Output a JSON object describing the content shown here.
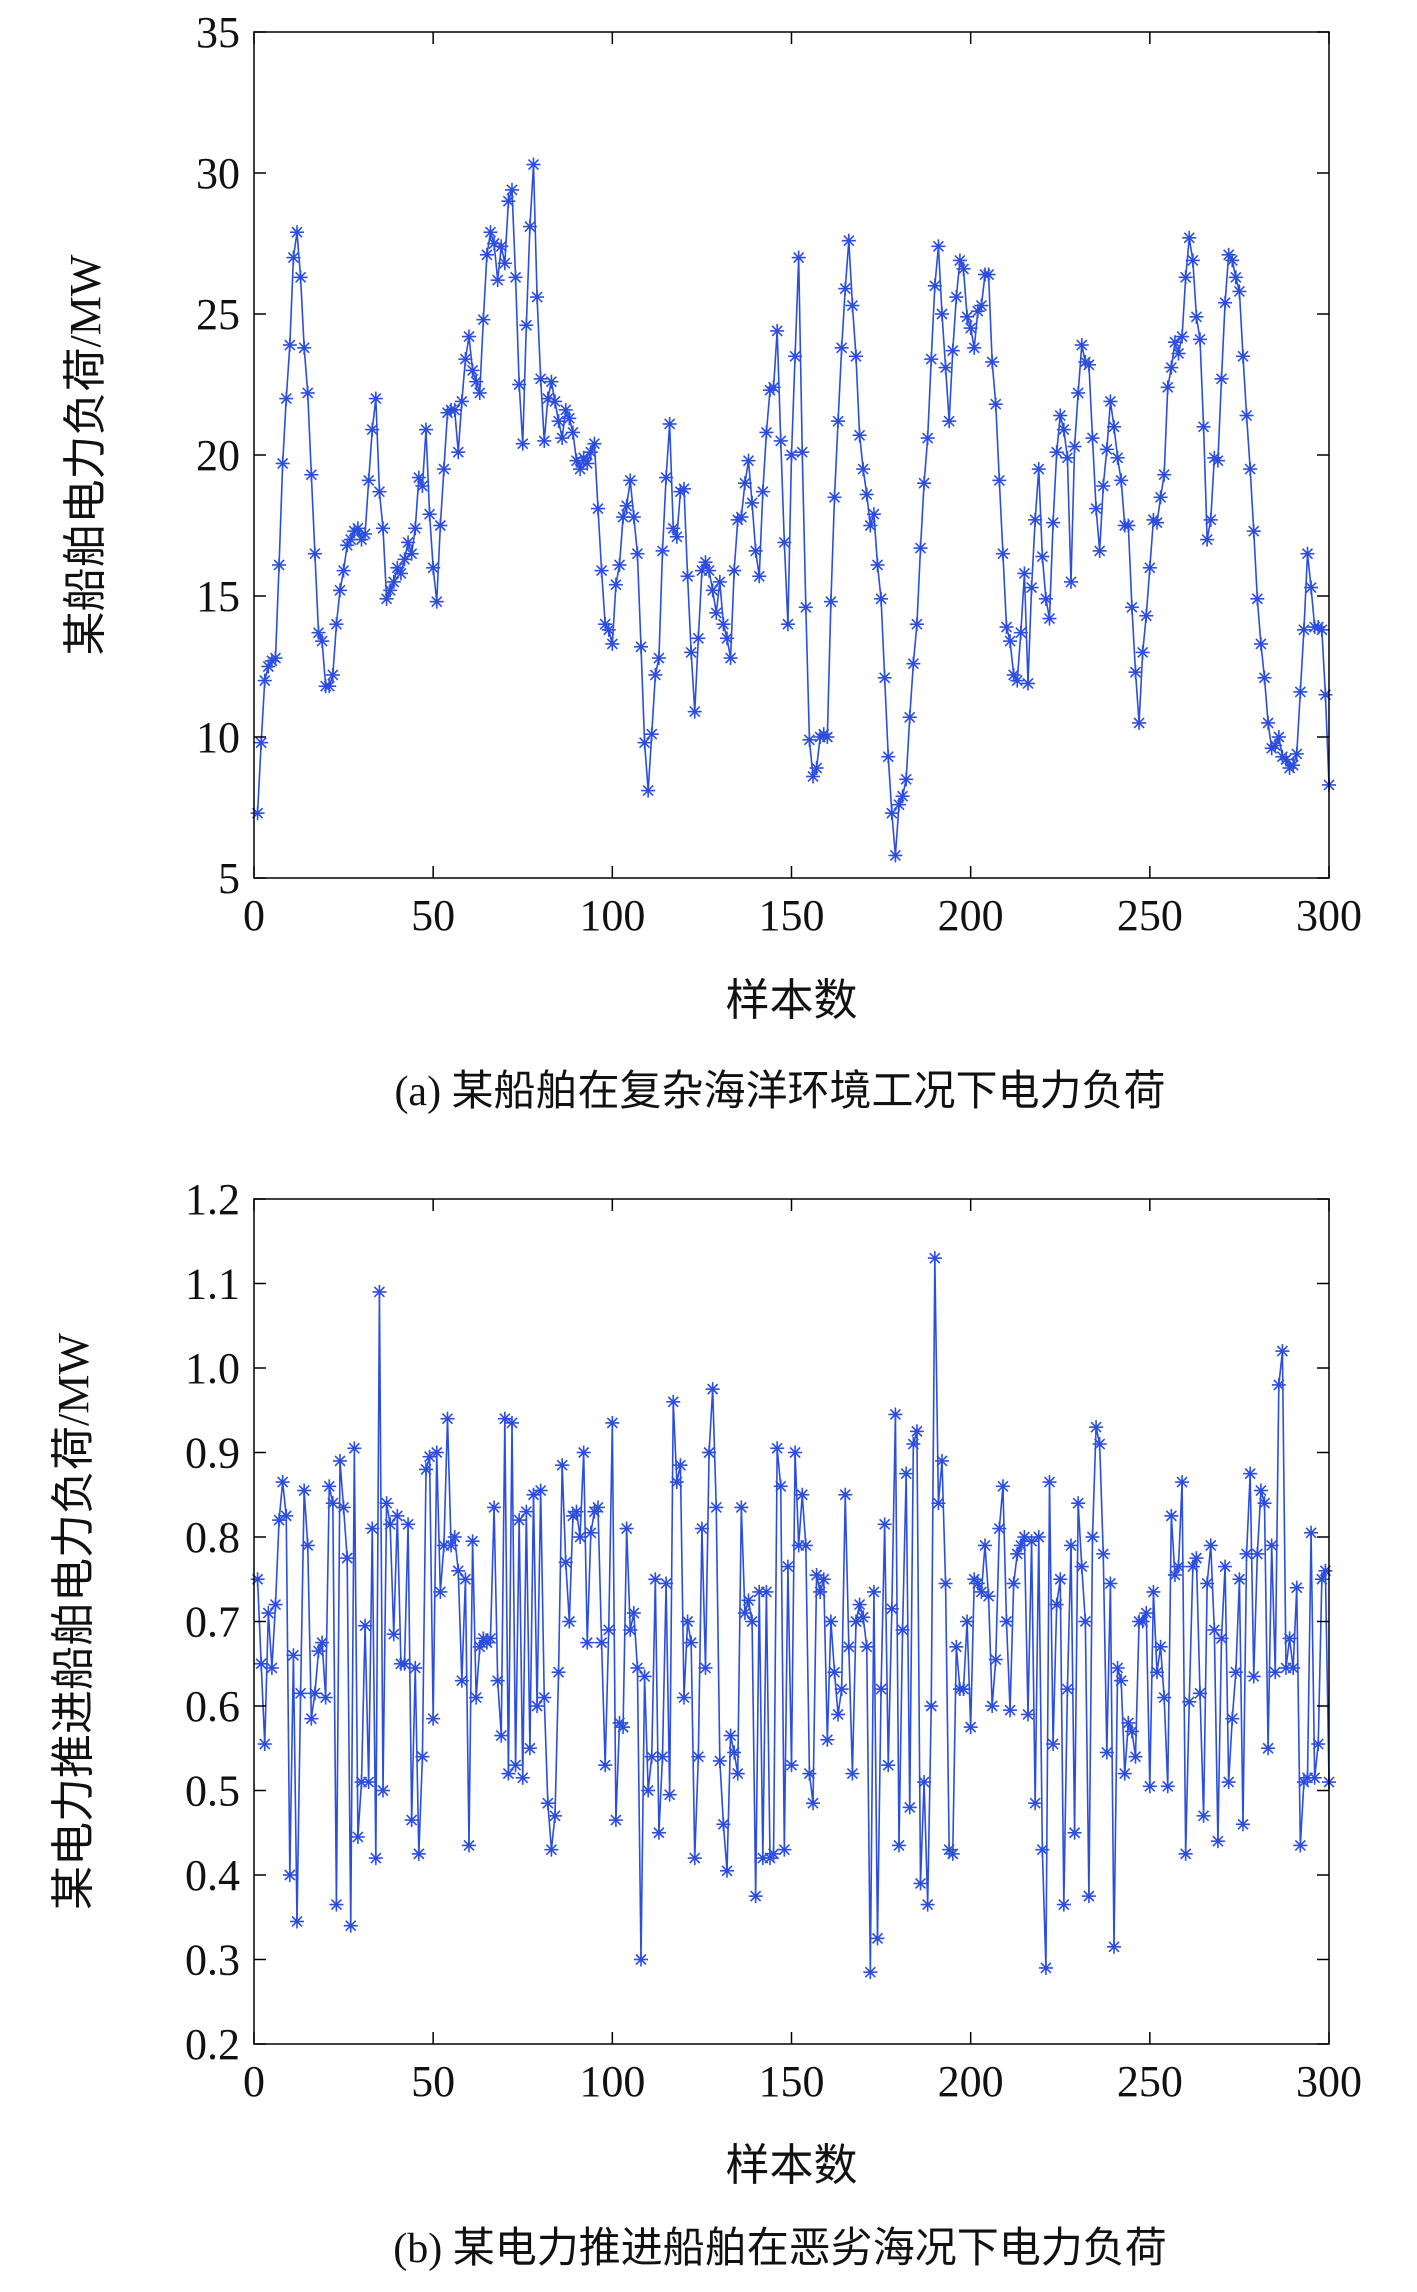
{
  "chart_data": [
    {
      "type": "line",
      "marker": "*",
      "color": "#2b4de0",
      "ylabel": "某船舶电力负荷/MW",
      "xlabel": "样本数",
      "caption": "(a) 某船舶在复杂海洋环境工况下电力负荷",
      "xlim": [
        0,
        300
      ],
      "xticks": [
        0,
        50,
        100,
        150,
        200,
        250,
        300
      ],
      "ylim": [
        5,
        35
      ],
      "yticks": [
        5,
        10,
        15,
        20,
        25,
        30,
        35
      ],
      "x": [
        1,
        2,
        3,
        4,
        5,
        6,
        7,
        8,
        9,
        10,
        11,
        12,
        13,
        14,
        15,
        16,
        17,
        18,
        19,
        20,
        21,
        22,
        23,
        24,
        25,
        26,
        27,
        28,
        29,
        30,
        31,
        32,
        33,
        34,
        35,
        36,
        37,
        38,
        39,
        40,
        41,
        42,
        43,
        44,
        45,
        46,
        47,
        48,
        49,
        50,
        51,
        52,
        53,
        54,
        55,
        56,
        57,
        58,
        59,
        60,
        61,
        62,
        63,
        64,
        65,
        66,
        67,
        68,
        69,
        70,
        71,
        72,
        73,
        74,
        75,
        76,
        77,
        78,
        79,
        80,
        81,
        82,
        83,
        84,
        85,
        86,
        87,
        88,
        89,
        90,
        91,
        92,
        93,
        94,
        95,
        96,
        97,
        98,
        99,
        100,
        101,
        102,
        103,
        104,
        105,
        106,
        107,
        108,
        109,
        110,
        111,
        112,
        113,
        114,
        115,
        116,
        117,
        118,
        119,
        120,
        121,
        122,
        123,
        124,
        125,
        126,
        127,
        128,
        129,
        130,
        131,
        132,
        133,
        134,
        135,
        136,
        137,
        138,
        139,
        140,
        141,
        142,
        143,
        144,
        145,
        146,
        147,
        148,
        149,
        150,
        151,
        152,
        153,
        154,
        155,
        156,
        157,
        158,
        159,
        160,
        161,
        162,
        163,
        164,
        165,
        166,
        167,
        168,
        169,
        170,
        171,
        172,
        173,
        174,
        175,
        176,
        177,
        178,
        179,
        180,
        181,
        182,
        183,
        184,
        185,
        186,
        187,
        188,
        189,
        190,
        191,
        192,
        193,
        194,
        195,
        196,
        197,
        198,
        199,
        200,
        201,
        202,
        203,
        204,
        205,
        206,
        207,
        208,
        209,
        210,
        211,
        212,
        213,
        214,
        215,
        216,
        217,
        218,
        219,
        220,
        221,
        222,
        223,
        224,
        225,
        226,
        227,
        228,
        229,
        230,
        231,
        232,
        233,
        234,
        235,
        236,
        237,
        238,
        239,
        240,
        241,
        242,
        243,
        244,
        245,
        246,
        247,
        248,
        249,
        250,
        251,
        252,
        253,
        254,
        255,
        256,
        257,
        258,
        259,
        260,
        261,
        262,
        263,
        264,
        265,
        266,
        267,
        268,
        269,
        270,
        271,
        272,
        273,
        274,
        275,
        276,
        277,
        278,
        279,
        280,
        281,
        282,
        283,
        284,
        285,
        286,
        287,
        288,
        289,
        290,
        291,
        292,
        293,
        294,
        295,
        296,
        297,
        298,
        299,
        300
      ],
      "values": [
        7.3,
        9.8,
        12,
        12.5,
        12.7,
        12.8,
        16.1,
        19.7,
        22,
        23.9,
        27,
        27.9,
        26.3,
        23.8,
        22.2,
        19.3,
        16.5,
        13.7,
        13.4,
        11.8,
        11.8,
        12.2,
        14,
        15.2,
        15.9,
        16.8,
        17,
        17.3,
        17.4,
        17,
        17.2,
        19.1,
        20.9,
        22,
        18.7,
        17.4,
        14.9,
        15.2,
        15.5,
        16,
        15.8,
        16.3,
        16.9,
        16.5,
        17.4,
        19.2,
        18.9,
        20.9,
        17.9,
        16,
        14.8,
        17.5,
        19.5,
        21.5,
        21.6,
        21.6,
        20.1,
        21.9,
        23.4,
        24.2,
        23,
        22.6,
        22.2,
        24.8,
        27.1,
        27.9,
        27.5,
        26.2,
        27.4,
        26.8,
        29,
        29.4,
        26.3,
        22.5,
        20.4,
        24.6,
        28.1,
        30.3,
        25.6,
        22.7,
        20.5,
        22,
        22.6,
        21.9,
        21.2,
        20.6,
        21.6,
        21.3,
        20.8,
        19.8,
        19.5,
        19.9,
        19.7,
        20.1,
        20.4,
        18.1,
        15.9,
        14,
        13.8,
        13.3,
        15.4,
        16.1,
        17.8,
        18.2,
        19.1,
        17.8,
        16.5,
        13.2,
        9.8,
        8.1,
        10.1,
        12.2,
        12.8,
        16.6,
        19.2,
        21.1,
        17.4,
        17.1,
        18.7,
        18.8,
        15.7,
        13,
        10.9,
        13.5,
        15.9,
        16.2,
        15.9,
        15.2,
        14.4,
        15.5,
        14,
        13.5,
        12.8,
        15.9,
        17.7,
        17.8,
        19,
        19.8,
        18.3,
        16.6,
        15.7,
        18.7,
        20.8,
        22.3,
        22.4,
        24.4,
        20.5,
        16.9,
        14,
        20,
        23.5,
        27,
        20.1,
        14.6,
        9.9,
        8.6,
        8.9,
        10,
        10.1,
        10,
        14.8,
        18.5,
        21.2,
        23.8,
        25.9,
        27.6,
        25.3,
        23.5,
        20.7,
        19.5,
        18.6,
        17.5,
        17.9,
        16.1,
        14.9,
        12.1,
        9.3,
        7.3,
        5.8,
        7.6,
        7.9,
        8.5,
        10.7,
        12.6,
        14,
        16.7,
        19,
        20.6,
        23.4,
        26,
        27.4,
        25,
        23.1,
        21.2,
        23.7,
        25.6,
        26.9,
        26.6,
        24.9,
        24.5,
        23.8,
        25.1,
        25.3,
        26.4,
        26.4,
        23.3,
        21.8,
        19.1,
        16.5,
        13.9,
        13.4,
        12.2,
        12,
        13.7,
        15.8,
        11.9,
        15.3,
        17.7,
        19.5,
        16.4,
        14.9,
        14.2,
        17.6,
        20.1,
        21.4,
        20.9,
        19.9,
        15.5,
        20.3,
        22.2,
        23.9,
        23.3,
        23.2,
        20.6,
        18.1,
        16.6,
        18.9,
        20.2,
        21.9,
        21,
        19.9,
        19.1,
        17.5,
        17.5,
        14.6,
        12.3,
        10.5,
        13,
        14.3,
        16,
        17.7,
        17.6,
        18.5,
        19.3,
        22.4,
        23.1,
        24,
        23.6,
        24.2,
        26.3,
        27.7,
        26.9,
        24.9,
        24.1,
        21,
        17,
        17.7,
        19.9,
        19.8,
        22.7,
        25.4,
        27.1,
        26.9,
        26.3,
        25.8,
        23.5,
        21.4,
        19.5,
        17.3,
        14.9,
        13.3,
        12.1,
        10.5,
        9.6,
        9.7,
        10,
        9.3,
        9.2,
        8.9,
        9,
        9.4,
        11.6,
        13.8,
        16.5,
        15.3,
        13.9,
        13.9,
        13.8,
        11.5,
        8.3
      ]
    },
    {
      "type": "line",
      "marker": "*",
      "color": "#2b4de0",
      "ylabel": "某电力推进船舶电力负荷/MW",
      "xlabel": "样本数",
      "caption": "(b) 某电力推进船舶在恶劣海况下电力负荷",
      "xlim": [
        0,
        300
      ],
      "xticks": [
        0,
        50,
        100,
        150,
        200,
        250,
        300
      ],
      "ylim": [
        0.2,
        1.2
      ],
      "yticks": [
        0.2,
        0.3,
        0.4,
        0.5,
        0.6,
        0.7,
        0.8,
        0.9,
        {
          "value": 1,
          "label": "1.0"
        },
        1.1,
        1.2
      ],
      "x": [
        1,
        2,
        3,
        4,
        5,
        6,
        7,
        8,
        9,
        10,
        11,
        12,
        13,
        14,
        15,
        16,
        17,
        18,
        19,
        20,
        21,
        22,
        23,
        24,
        25,
        26,
        27,
        28,
        29,
        30,
        31,
        32,
        33,
        34,
        35,
        36,
        37,
        38,
        39,
        40,
        41,
        42,
        43,
        44,
        45,
        46,
        47,
        48,
        49,
        50,
        51,
        52,
        53,
        54,
        55,
        56,
        57,
        58,
        59,
        60,
        61,
        62,
        63,
        64,
        65,
        66,
        67,
        68,
        69,
        70,
        71,
        72,
        73,
        74,
        75,
        76,
        77,
        78,
        79,
        80,
        81,
        82,
        83,
        84,
        85,
        86,
        87,
        88,
        89,
        90,
        91,
        92,
        93,
        94,
        95,
        96,
        97,
        98,
        99,
        100,
        101,
        102,
        103,
        104,
        105,
        106,
        107,
        108,
        109,
        110,
        111,
        112,
        113,
        114,
        115,
        116,
        117,
        118,
        119,
        120,
        121,
        122,
        123,
        124,
        125,
        126,
        127,
        128,
        129,
        130,
        131,
        132,
        133,
        134,
        135,
        136,
        137,
        138,
        139,
        140,
        141,
        142,
        143,
        144,
        145,
        146,
        147,
        148,
        149,
        150,
        151,
        152,
        153,
        154,
        155,
        156,
        157,
        158,
        159,
        160,
        161,
        162,
        163,
        164,
        165,
        166,
        167,
        168,
        169,
        170,
        171,
        172,
        173,
        174,
        175,
        176,
        177,
        178,
        179,
        180,
        181,
        182,
        183,
        184,
        185,
        186,
        187,
        188,
        189,
        190,
        191,
        192,
        193,
        194,
        195,
        196,
        197,
        198,
        199,
        200,
        201,
        202,
        203,
        204,
        205,
        206,
        207,
        208,
        209,
        210,
        211,
        212,
        213,
        214,
        215,
        216,
        217,
        218,
        219,
        220,
        221,
        222,
        223,
        224,
        225,
        226,
        227,
        228,
        229,
        230,
        231,
        232,
        233,
        234,
        235,
        236,
        237,
        238,
        239,
        240,
        241,
        242,
        243,
        244,
        245,
        246,
        247,
        248,
        249,
        250,
        251,
        252,
        253,
        254,
        255,
        256,
        257,
        258,
        259,
        260,
        261,
        262,
        263,
        264,
        265,
        266,
        267,
        268,
        269,
        270,
        271,
        272,
        273,
        274,
        275,
        276,
        277,
        278,
        279,
        280,
        281,
        282,
        283,
        284,
        285,
        286,
        287,
        288,
        289,
        290,
        291,
        292,
        293,
        294,
        295,
        296,
        297,
        298,
        299,
        300
      ],
      "values": [
        0.75,
        0.65,
        0.555,
        0.71,
        0.645,
        0.72,
        0.82,
        0.865,
        0.825,
        0.4,
        0.66,
        0.345,
        0.615,
        0.855,
        0.79,
        0.585,
        0.615,
        0.665,
        0.675,
        0.61,
        0.86,
        0.84,
        0.365,
        0.89,
        0.835,
        0.775,
        0.34,
        0.905,
        0.445,
        0.51,
        0.695,
        0.51,
        0.81,
        0.42,
        1.09,
        0.5,
        0.84,
        0.815,
        0.685,
        0.825,
        0.65,
        0.65,
        0.815,
        0.465,
        0.645,
        0.425,
        0.54,
        0.88,
        0.895,
        0.585,
        0.9,
        0.735,
        0.79,
        0.94,
        0.79,
        0.8,
        0.76,
        0.63,
        0.75,
        0.435,
        0.795,
        0.61,
        0.67,
        0.68,
        0.675,
        0.68,
        0.835,
        0.63,
        0.565,
        0.94,
        0.52,
        0.935,
        0.53,
        0.82,
        0.515,
        0.83,
        0.55,
        0.85,
        0.6,
        0.855,
        0.61,
        0.485,
        0.43,
        0.47,
        0.64,
        0.885,
        0.77,
        0.7,
        0.825,
        0.83,
        0.8,
        0.9,
        0.675,
        0.805,
        0.83,
        0.835,
        0.675,
        0.53,
        0.69,
        0.935,
        0.465,
        0.58,
        0.575,
        0.81,
        0.69,
        0.71,
        0.645,
        0.3,
        0.635,
        0.5,
        0.54,
        0.75,
        0.45,
        0.54,
        0.745,
        0.495,
        0.96,
        0.865,
        0.885,
        0.61,
        0.7,
        0.675,
        0.42,
        0.54,
        0.81,
        0.645,
        0.9,
        0.975,
        0.835,
        0.535,
        0.46,
        0.405,
        0.565,
        0.545,
        0.52,
        0.835,
        0.71,
        0.725,
        0.7,
        0.375,
        0.735,
        0.42,
        0.735,
        0.42,
        0.425,
        0.905,
        0.86,
        0.43,
        0.765,
        0.53,
        0.9,
        0.79,
        0.85,
        0.79,
        0.52,
        0.485,
        0.755,
        0.735,
        0.75,
        0.56,
        0.7,
        0.64,
        0.59,
        0.62,
        0.85,
        0.67,
        0.52,
        0.7,
        0.72,
        0.705,
        0.67,
        0.285,
        0.735,
        0.325,
        0.62,
        0.815,
        0.53,
        0.715,
        0.945,
        0.435,
        0.69,
        0.875,
        0.48,
        0.91,
        0.925,
        0.39,
        0.51,
        0.365,
        0.6,
        1.13,
        0.84,
        0.89,
        0.745,
        0.43,
        0.425,
        0.67,
        0.62,
        0.62,
        0.7,
        0.575,
        0.75,
        0.745,
        0.735,
        0.79,
        0.73,
        0.6,
        0.655,
        0.81,
        0.86,
        0.7,
        0.595,
        0.745,
        0.78,
        0.79,
        0.8,
        0.59,
        0.795,
        0.485,
        0.8,
        0.43,
        0.29,
        0.865,
        0.555,
        0.72,
        0.75,
        0.365,
        0.62,
        0.79,
        0.45,
        0.84,
        0.765,
        0.7,
        0.375,
        0.8,
        0.93,
        0.91,
        0.78,
        0.545,
        0.745,
        0.315,
        0.645,
        0.63,
        0.52,
        0.58,
        0.57,
        0.54,
        0.7,
        0.7,
        0.71,
        0.505,
        0.735,
        0.64,
        0.67,
        0.61,
        0.505,
        0.825,
        0.755,
        0.765,
        0.865,
        0.425,
        0.605,
        0.765,
        0.775,
        0.615,
        0.47,
        0.745,
        0.79,
        0.69,
        0.44,
        0.68,
        0.765,
        0.51,
        0.585,
        0.64,
        0.75,
        0.46,
        0.78,
        0.875,
        0.635,
        0.78,
        0.855,
        0.84,
        0.55,
        0.79,
        0.64,
        0.98,
        1.02,
        0.645,
        0.68,
        0.645,
        0.74,
        0.435,
        0.51,
        0.515,
        0.805,
        0.515,
        0.555,
        0.75,
        0.76,
        0.51
      ]
    }
  ]
}
